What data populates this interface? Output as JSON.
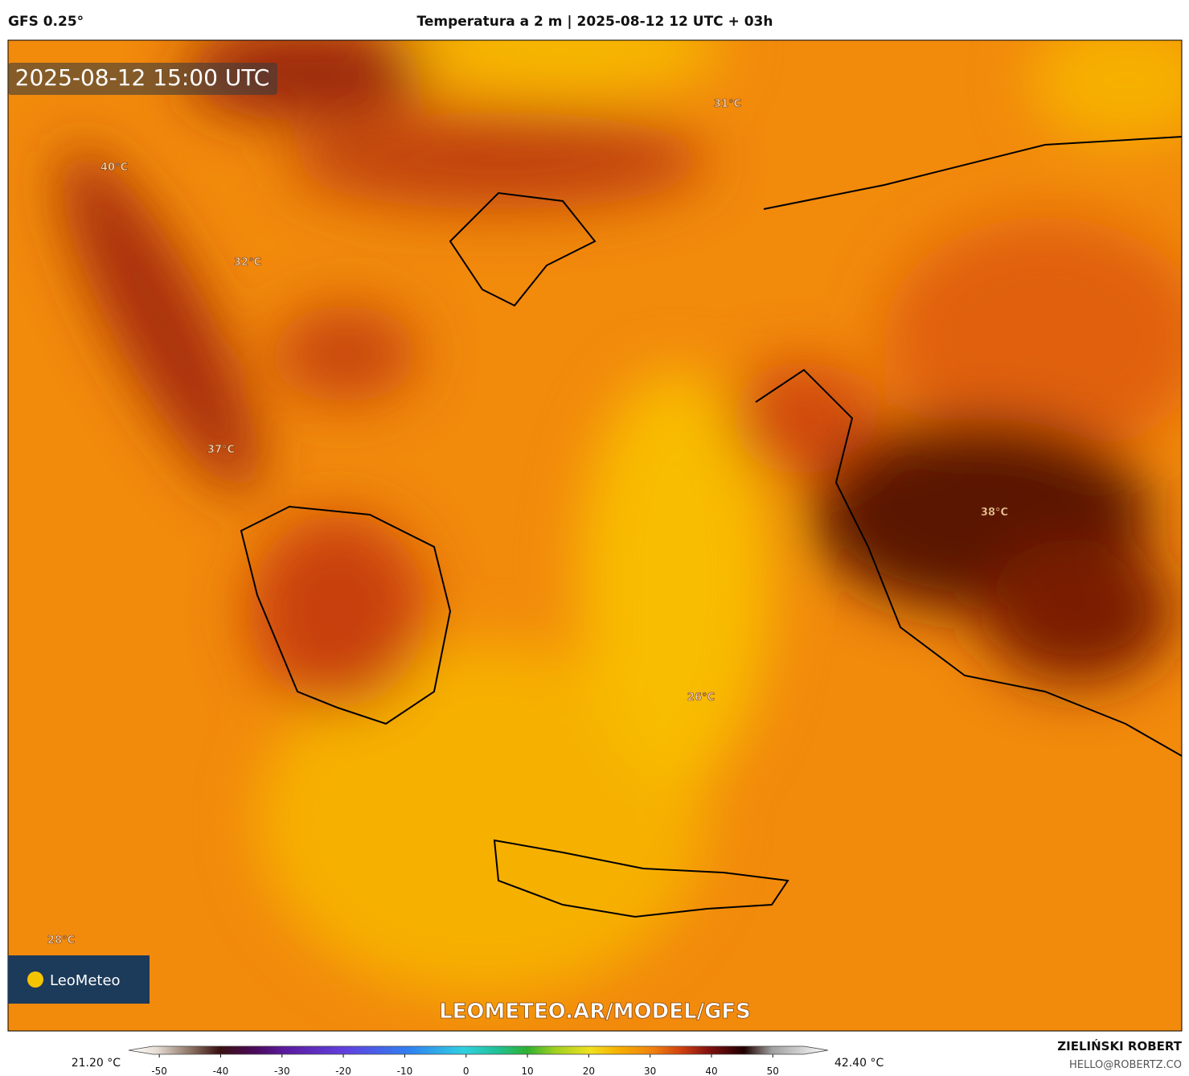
{
  "header": {
    "model": "GFS 0.25°",
    "title": "Temperatura a 2 m | 2025-08-12 12 UTC + 03h"
  },
  "map": {
    "timestamp": "2025-08-12 15:00 UTC",
    "labels": [
      "31°C",
      "40°C",
      "32°C",
      "37°C",
      "38°C",
      "26°C",
      "28°C"
    ],
    "logo": "LeoMeteo",
    "watermark": "LEOMETEO.AR/MODEL/GFS"
  },
  "colorbar": {
    "min_label": "21.20 °C",
    "max_label": "42.40 °C",
    "range": [
      -55,
      59
    ],
    "ticks": [
      -50,
      -40,
      -30,
      -20,
      -10,
      0,
      10,
      20,
      30,
      40,
      50
    ]
  },
  "footer": {
    "author": "ZIELIŃSKI ROBERT",
    "email": "HELLO@ROBERTZ.CO"
  }
}
